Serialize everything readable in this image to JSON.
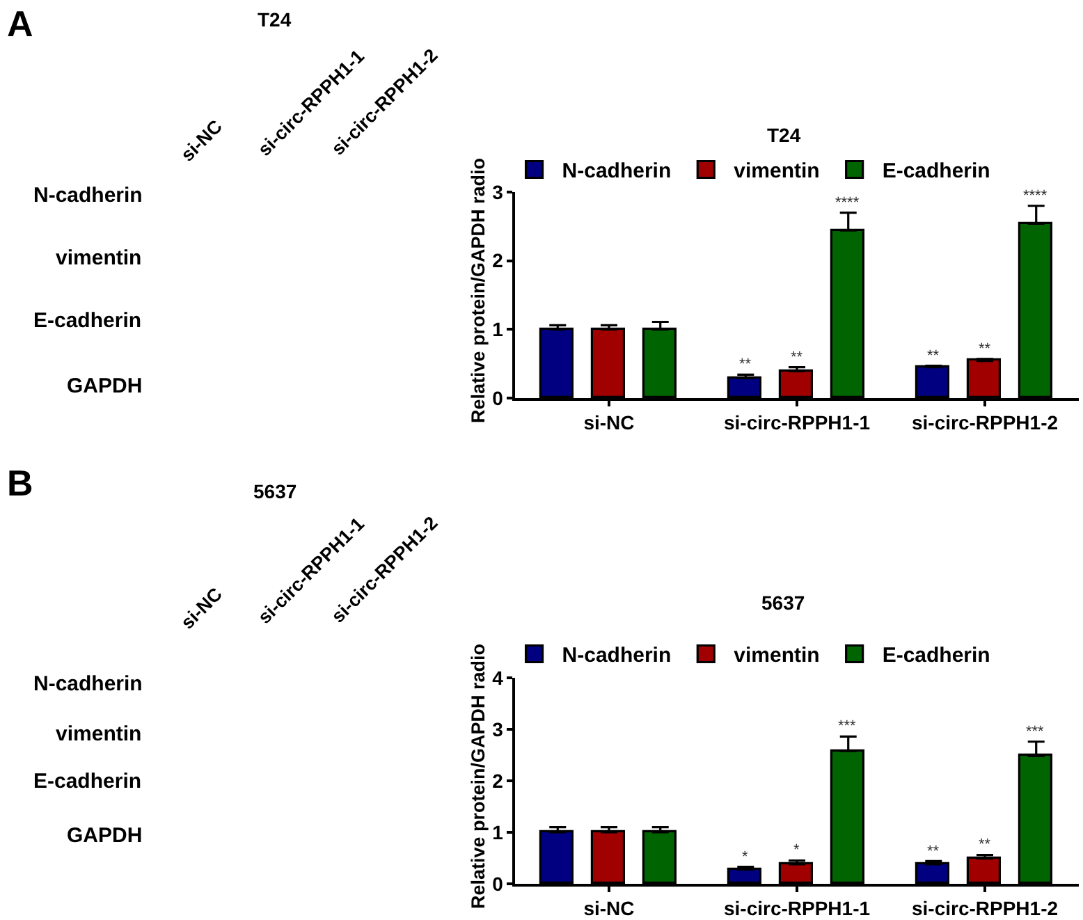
{
  "chart_data": [
    {
      "type": "other",
      "title": "T24",
      "categories": [
        "si-NC",
        "si-circ-RPPH1-1",
        "si-circ-RPPH1-2"
      ],
      "y_categories": [
        "N-cadherin",
        "vimentin",
        "E-cadherin",
        "GAPDH"
      ],
      "annotations": [
        "A"
      ]
    },
    {
      "type": "bar",
      "title": "T24",
      "categories": [
        "si-NC",
        "si-circ-RPPH1-1",
        "si-circ-RPPH1-2"
      ],
      "ylabel": "Relative protein/GAPDH radio",
      "ylim": [
        0,
        3
      ],
      "yticks": [
        0,
        1,
        2,
        3
      ],
      "legend": "top left",
      "series": [
        {
          "name": "N-cadherin",
          "color": "#000080",
          "values": [
            1.0,
            0.29,
            0.45
          ],
          "errors": [
            [
              1.0,
              1.06
            ],
            [
              0.29,
              0.34
            ],
            [
              0.45,
              0.47
            ]
          ],
          "value_labels": [
            null,
            "**",
            "**"
          ]
        },
        {
          "name": "vimentin",
          "color": "#a00000",
          "values": [
            1.0,
            0.39,
            0.54
          ],
          "errors": [
            [
              1.0,
              1.06
            ],
            [
              0.39,
              0.45
            ],
            [
              0.54,
              0.57
            ]
          ],
          "value_labels": [
            null,
            "**",
            "**"
          ]
        },
        {
          "name": "E-cadherin",
          "color": "#006400",
          "values": [
            1.0,
            2.44,
            2.54
          ],
          "errors": [
            [
              1.0,
              1.11
            ],
            [
              2.44,
              2.7
            ],
            [
              2.54,
              2.8
            ]
          ],
          "value_labels": [
            null,
            "****",
            "****"
          ]
        }
      ]
    },
    {
      "type": "other",
      "title": "5637",
      "categories": [
        "si-NC",
        "si-circ-RPPH1-1",
        "si-circ-RPPH1-2"
      ],
      "y_categories": [
        "N-cadherin",
        "vimentin",
        "E-cadherin",
        "GAPDH"
      ],
      "annotations": [
        "B"
      ]
    },
    {
      "type": "bar",
      "title": "5637",
      "categories": [
        "si-NC",
        "si-circ-RPPH1-1",
        "si-circ-RPPH1-2"
      ],
      "ylabel": "Relative protein/GAPDH radio",
      "ylim": [
        0,
        4
      ],
      "yticks": [
        0,
        1,
        2,
        3,
        4
      ],
      "legend": "top left",
      "series": [
        {
          "name": "N-cadherin",
          "color": "#000080",
          "values": [
            1.0,
            0.28,
            0.38
          ],
          "errors": [
            [
              1.0,
              1.1
            ],
            [
              0.28,
              0.33
            ],
            [
              0.38,
              0.44
            ]
          ],
          "value_labels": [
            null,
            "*",
            "**"
          ]
        },
        {
          "name": "vimentin",
          "color": "#a00000",
          "values": [
            1.0,
            0.38,
            0.49
          ],
          "errors": [
            [
              1.0,
              1.1
            ],
            [
              0.38,
              0.45
            ],
            [
              0.49,
              0.56
            ]
          ],
          "value_labels": [
            null,
            "*",
            "**"
          ]
        },
        {
          "name": "E-cadherin",
          "color": "#006400",
          "values": [
            1.0,
            2.58,
            2.48
          ],
          "errors": [
            [
              1.0,
              1.1
            ],
            [
              2.58,
              2.86
            ],
            [
              2.48,
              2.76
            ]
          ],
          "value_labels": [
            null,
            "***",
            "***"
          ]
        }
      ]
    }
  ]
}
